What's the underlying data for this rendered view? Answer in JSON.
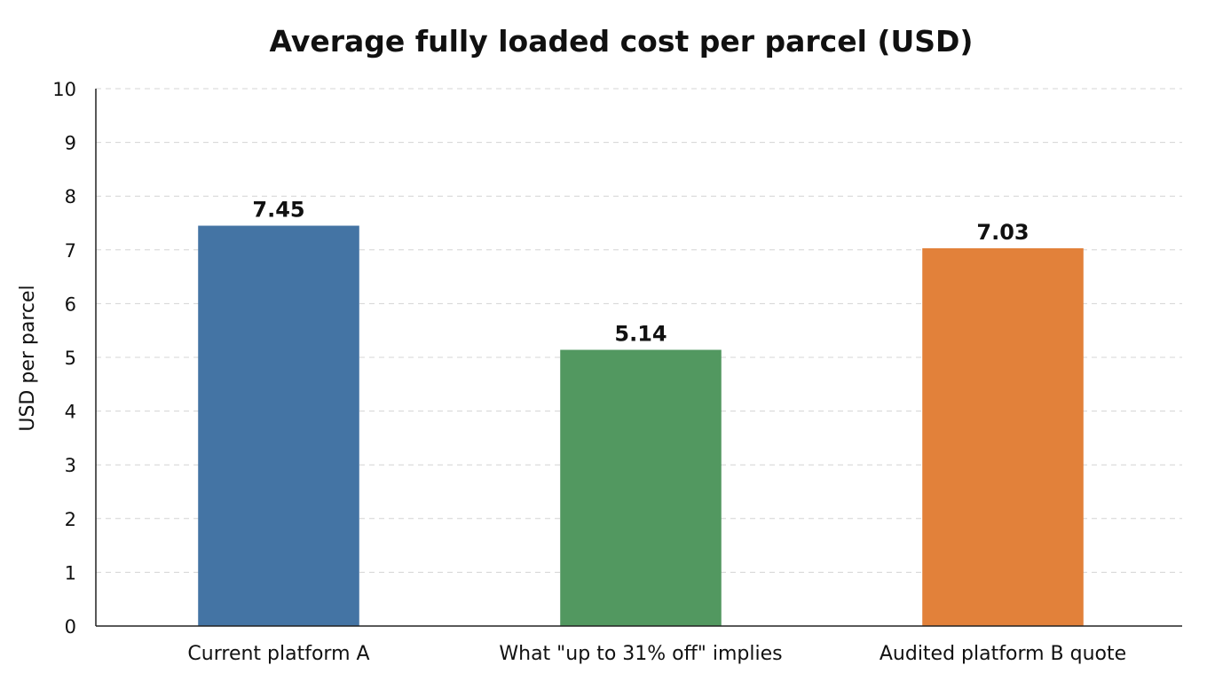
{
  "chart_data": {
    "type": "bar",
    "title": "Average fully loaded cost per parcel (USD)",
    "xlabel": "",
    "ylabel": "USD per parcel",
    "ylim": [
      0,
      10
    ],
    "yticks": [
      0,
      1,
      2,
      3,
      4,
      5,
      6,
      7,
      8,
      9,
      10
    ],
    "grid": true,
    "categories": [
      "Current platform A",
      "What \"up to 31% off\" implies",
      "Audited platform B quote"
    ],
    "values": [
      7.45,
      5.14,
      7.03
    ],
    "value_labels": [
      "7.45",
      "5.14",
      "7.03"
    ],
    "colors": [
      "#4474a4",
      "#529860",
      "#e2813a"
    ]
  }
}
